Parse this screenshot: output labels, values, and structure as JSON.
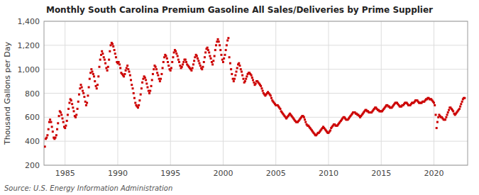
{
  "chart_data": {
    "type": "scatter",
    "title": "Monthly South Carolina Premium Gasoline All Sales/Deliveries by Prime Supplier",
    "ylabel": "Thousand Gallons per Day",
    "source": "Source: U.S. Energy Information Administration",
    "color": "#cc0000",
    "marker": "square",
    "grid": true,
    "xlim": [
      1983.0,
      2023.2
    ],
    "xticks": [
      1985,
      1990,
      1995,
      2000,
      2005,
      2010,
      2015,
      2020
    ],
    "ylim": [
      200,
      1400
    ],
    "yticks": [
      200,
      400,
      600,
      800,
      {
        "value": 1000,
        "label": "1,000"
      },
      {
        "value": 1200,
        "label": "1,200"
      },
      {
        "value": 1400,
        "label": "1,400"
      }
    ],
    "x": [
      1983.08,
      1983.17,
      1983.25,
      1983.33,
      1983.42,
      1983.5,
      1983.58,
      1983.67,
      1983.75,
      1983.83,
      1983.92,
      1984.0,
      1984.08,
      1984.17,
      1984.25,
      1984.33,
      1984.42,
      1984.5,
      1984.58,
      1984.67,
      1984.75,
      1984.83,
      1984.92,
      1985.0,
      1985.08,
      1985.17,
      1985.25,
      1985.33,
      1985.42,
      1985.5,
      1985.58,
      1985.67,
      1985.75,
      1985.83,
      1985.92,
      1986.0,
      1986.08,
      1986.17,
      1986.25,
      1986.33,
      1986.42,
      1986.5,
      1986.58,
      1986.67,
      1986.75,
      1986.83,
      1986.92,
      1987.0,
      1987.08,
      1987.17,
      1987.25,
      1987.33,
      1987.42,
      1987.5,
      1987.58,
      1987.67,
      1987.75,
      1987.83,
      1987.92,
      1988.0,
      1988.08,
      1988.17,
      1988.25,
      1988.33,
      1988.42,
      1988.5,
      1988.58,
      1988.67,
      1988.75,
      1988.83,
      1988.92,
      1989.0,
      1989.08,
      1989.17,
      1989.25,
      1989.33,
      1989.42,
      1989.5,
      1989.58,
      1989.67,
      1989.75,
      1989.83,
      1989.92,
      1990.0,
      1990.08,
      1990.17,
      1990.25,
      1990.33,
      1990.42,
      1990.5,
      1990.58,
      1990.67,
      1990.75,
      1990.83,
      1990.92,
      1991.0,
      1991.08,
      1991.17,
      1991.25,
      1991.33,
      1991.42,
      1991.5,
      1991.58,
      1991.67,
      1991.75,
      1991.83,
      1991.92,
      1992.0,
      1992.08,
      1992.17,
      1992.25,
      1992.33,
      1992.42,
      1992.5,
      1992.58,
      1992.67,
      1992.75,
      1992.83,
      1992.92,
      1993.0,
      1993.08,
      1993.17,
      1993.25,
      1993.33,
      1993.42,
      1993.5,
      1993.58,
      1993.67,
      1993.75,
      1993.83,
      1993.92,
      1994.0,
      1994.08,
      1994.17,
      1994.25,
      1994.33,
      1994.42,
      1994.5,
      1994.58,
      1994.67,
      1994.75,
      1994.83,
      1994.92,
      1995.0,
      1995.08,
      1995.17,
      1995.25,
      1995.33,
      1995.42,
      1995.5,
      1995.58,
      1995.67,
      1995.75,
      1995.83,
      1995.92,
      1996.0,
      1996.08,
      1996.17,
      1996.25,
      1996.33,
      1996.42,
      1996.5,
      1996.58,
      1996.67,
      1996.75,
      1996.83,
      1996.92,
      1997.0,
      1997.08,
      1997.17,
      1997.25,
      1997.33,
      1997.42,
      1997.5,
      1997.58,
      1997.67,
      1997.75,
      1997.83,
      1997.92,
      1998.0,
      1998.08,
      1998.17,
      1998.25,
      1998.33,
      1998.42,
      1998.5,
      1998.58,
      1998.67,
      1998.75,
      1998.83,
      1998.92,
      1999.0,
      1999.08,
      1999.17,
      1999.25,
      1999.33,
      1999.42,
      1999.5,
      1999.58,
      1999.67,
      1999.75,
      1999.83,
      1999.92,
      2000.0,
      2000.08,
      2000.17,
      2000.25,
      2000.33,
      2000.42,
      2000.5,
      2000.58,
      2000.67,
      2000.75,
      2000.83,
      2000.92,
      2001.0,
      2001.08,
      2001.17,
      2001.25,
      2001.33,
      2001.42,
      2001.5,
      2001.58,
      2001.67,
      2001.75,
      2001.83,
      2001.92,
      2002.0,
      2002.08,
      2002.17,
      2002.25,
      2002.33,
      2002.42,
      2002.5,
      2002.58,
      2002.67,
      2002.75,
      2002.83,
      2002.92,
      2003.0,
      2003.08,
      2003.17,
      2003.25,
      2003.33,
      2003.42,
      2003.5,
      2003.58,
      2003.67,
      2003.75,
      2003.83,
      2003.92,
      2004.0,
      2004.08,
      2004.17,
      2004.25,
      2004.33,
      2004.42,
      2004.5,
      2004.58,
      2004.67,
      2004.75,
      2004.83,
      2004.92,
      2005.0,
      2005.08,
      2005.17,
      2005.25,
      2005.33,
      2005.42,
      2005.5,
      2005.58,
      2005.67,
      2005.75,
      2005.83,
      2005.92,
      2006.0,
      2006.08,
      2006.17,
      2006.25,
      2006.33,
      2006.42,
      2006.5,
      2006.58,
      2006.67,
      2006.75,
      2006.83,
      2006.92,
      2007.0,
      2007.08,
      2007.17,
      2007.25,
      2007.33,
      2007.42,
      2007.5,
      2007.58,
      2007.67,
      2007.75,
      2007.83,
      2007.92,
      2008.0,
      2008.08,
      2008.17,
      2008.25,
      2008.33,
      2008.42,
      2008.5,
      2008.58,
      2008.67,
      2008.75,
      2008.83,
      2008.92,
      2009.0,
      2009.08,
      2009.17,
      2009.25,
      2009.33,
      2009.42,
      2009.5,
      2009.58,
      2009.67,
      2009.75,
      2009.83,
      2009.92,
      2010.0,
      2010.08,
      2010.17,
      2010.25,
      2010.33,
      2010.42,
      2010.5,
      2010.58,
      2010.67,
      2010.75,
      2010.83,
      2010.92,
      2011.0,
      2011.08,
      2011.17,
      2011.25,
      2011.33,
      2011.42,
      2011.5,
      2011.58,
      2011.67,
      2011.75,
      2011.83,
      2011.92,
      2012.0,
      2012.08,
      2012.17,
      2012.25,
      2012.33,
      2012.42,
      2012.5,
      2012.58,
      2012.67,
      2012.75,
      2012.83,
      2012.92,
      2013.0,
      2013.08,
      2013.17,
      2013.25,
      2013.33,
      2013.42,
      2013.5,
      2013.58,
      2013.67,
      2013.75,
      2013.83,
      2013.92,
      2014.0,
      2014.08,
      2014.17,
      2014.25,
      2014.33,
      2014.42,
      2014.5,
      2014.58,
      2014.67,
      2014.75,
      2014.83,
      2014.92,
      2015.0,
      2015.08,
      2015.17,
      2015.25,
      2015.33,
      2015.42,
      2015.5,
      2015.58,
      2015.67,
      2015.75,
      2015.83,
      2015.92,
      2016.0,
      2016.08,
      2016.17,
      2016.25,
      2016.33,
      2016.42,
      2016.5,
      2016.58,
      2016.67,
      2016.75,
      2016.83,
      2016.92,
      2017.0,
      2017.08,
      2017.17,
      2017.25,
      2017.33,
      2017.42,
      2017.5,
      2017.58,
      2017.67,
      2017.75,
      2017.83,
      2017.92,
      2018.0,
      2018.08,
      2018.17,
      2018.25,
      2018.33,
      2018.42,
      2018.5,
      2018.58,
      2018.67,
      2018.75,
      2018.83,
      2018.92,
      2019.0,
      2019.08,
      2019.17,
      2019.25,
      2019.33,
      2019.42,
      2019.5,
      2019.58,
      2019.67,
      2019.75,
      2019.83,
      2019.92,
      2020.0,
      2020.08,
      2020.17,
      2020.25,
      2020.33,
      2020.42,
      2020.5,
      2020.58,
      2020.67,
      2020.75,
      2020.83,
      2020.92,
      2021.0,
      2021.08,
      2021.17,
      2021.25,
      2021.33,
      2021.42,
      2021.5,
      2021.58,
      2021.67,
      2021.75,
      2021.83,
      2021.92,
      2022.0,
      2022.08,
      2022.17,
      2022.25,
      2022.33,
      2022.42,
      2022.5,
      2022.58,
      2022.67,
      2022.75,
      2022.83,
      2022.92
    ],
    "values": [
      355,
      420,
      430,
      450,
      500,
      560,
      580,
      560,
      520,
      480,
      430,
      420,
      430,
      450,
      500,
      550,
      610,
      650,
      640,
      620,
      590,
      560,
      520,
      510,
      530,
      570,
      620,
      670,
      720,
      750,
      740,
      710,
      680,
      650,
      610,
      600,
      620,
      670,
      730,
      790,
      840,
      870,
      850,
      820,
      800,
      770,
      730,
      700,
      720,
      780,
      850,
      920,
      970,
      1000,
      980,
      960,
      940,
      900,
      860,
      840,
      870,
      940,
      1020,
      1080,
      1120,
      1150,
      1130,
      1100,
      1080,
      1050,
      1010,
      990,
      1020,
      1080,
      1150,
      1200,
      1220,
      1210,
      1190,
      1160,
      1130,
      1100,
      1060,
      1050,
      1060,
      1040,
      1010,
      970,
      960,
      950,
      940,
      960,
      990,
      1010,
      1030,
      1000,
      980,
      950,
      910,
      870,
      840,
      800,
      760,
      720,
      700,
      690,
      680,
      700,
      740,
      790,
      840,
      890,
      920,
      940,
      930,
      910,
      880,
      850,
      820,
      800,
      820,
      860,
      910,
      960,
      1000,
      1030,
      1020,
      1000,
      970,
      950,
      920,
      900,
      920,
      960,
      1010,
      1060,
      1100,
      1120,
      1110,
      1090,
      1060,
      1030,
      1000,
      990,
      1010,
      1060,
      1100,
      1140,
      1160,
      1150,
      1130,
      1110,
      1080,
      1060,
      1030,
      1010,
      1020,
      1040,
      1060,
      1080,
      1080,
      1060,
      1040,
      1030,
      1020,
      1010,
      1000,
      990,
      1010,
      1040,
      1070,
      1100,
      1120,
      1110,
      1090,
      1070,
      1050,
      1030,
      1010,
      1000,
      1020,
      1060,
      1100,
      1140,
      1170,
      1180,
      1160,
      1140,
      1110,
      1090,
      1060,
      1040,
      1070,
      1110,
      1160,
      1200,
      1230,
      1250,
      1230,
      1200,
      1160,
      1120,
      1080,
      1060,
      1090,
      1120,
      1160,
      1200,
      1240,
      1260,
      1100,
      1050,
      1000,
      960,
      920,
      900,
      920,
      950,
      980,
      1010,
      1040,
      1050,
      1030,
      1000,
      980,
      950,
      920,
      890,
      900,
      920,
      940,
      960,
      970,
      970,
      960,
      950,
      930,
      910,
      890,
      870,
      880,
      900,
      900,
      890,
      880,
      870,
      860,
      840,
      820,
      800,
      790,
      780,
      790,
      800,
      810,
      800,
      790,
      780,
      760,
      740,
      730,
      720,
      710,
      700,
      700,
      700,
      690,
      680,
      670,
      650,
      640,
      630,
      620,
      610,
      600,
      590,
      600,
      610,
      620,
      630,
      620,
      610,
      600,
      590,
      580,
      570,
      560,
      560,
      560,
      570,
      580,
      590,
      600,
      610,
      610,
      600,
      580,
      560,
      540,
      530,
      530,
      520,
      510,
      500,
      490,
      480,
      470,
      460,
      450,
      450,
      460,
      470,
      470,
      480,
      490,
      500,
      510,
      520,
      510,
      500,
      490,
      480,
      470,
      470,
      480,
      490,
      510,
      520,
      530,
      540,
      540,
      530,
      530,
      530,
      540,
      550,
      560,
      570,
      580,
      590,
      600,
      600,
      590,
      580,
      580,
      580,
      590,
      600,
      610,
      620,
      630,
      640,
      640,
      640,
      630,
      630,
      620,
      620,
      610,
      600,
      610,
      620,
      630,
      640,
      650,
      660,
      660,
      650,
      650,
      640,
      640,
      640,
      640,
      650,
      660,
      670,
      680,
      680,
      670,
      660,
      660,
      650,
      650,
      650,
      650,
      660,
      670,
      680,
      690,
      700,
      700,
      690,
      690,
      680,
      680,
      680,
      690,
      700,
      710,
      720,
      720,
      720,
      710,
      700,
      690,
      690,
      690,
      700,
      700,
      710,
      720,
      720,
      720,
      710,
      700,
      700,
      700,
      710,
      720,
      720,
      720,
      730,
      740,
      740,
      740,
      730,
      720,
      720,
      720,
      720,
      730,
      730,
      730,
      740,
      750,
      750,
      760,
      760,
      750,
      750,
      750,
      740,
      730,
      720,
      700,
      620,
      510,
      560,
      600,
      620,
      610,
      600,
      600,
      590,
      580,
      580,
      580,
      600,
      620,
      640,
      660,
      680,
      680,
      670,
      660,
      650,
      630,
      620,
      630,
      640,
      650,
      660,
      670,
      690,
      710,
      730,
      750,
      760,
      760
    ]
  }
}
